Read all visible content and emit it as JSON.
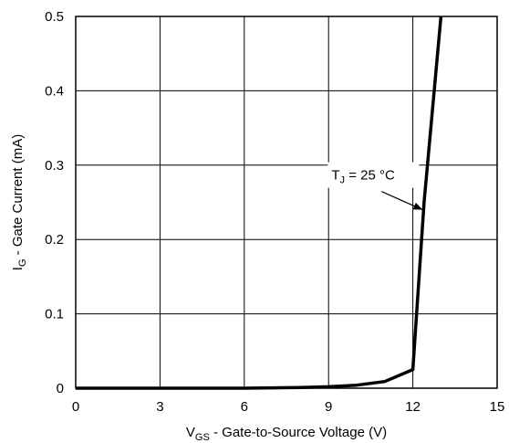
{
  "chart_data": {
    "type": "line",
    "title": "",
    "xlabel": {
      "main": "V",
      "sub": "GS",
      "rest": " - Gate-to-Source Voltage (V)"
    },
    "ylabel": {
      "main": "I",
      "sub": "G",
      "rest": " - Gate Current (mA)"
    },
    "xlim": [
      0,
      15
    ],
    "ylim": [
      0,
      0.5
    ],
    "xticks": [
      "0",
      "3",
      "6",
      "9",
      "12",
      "15"
    ],
    "yticks": [
      "0",
      "0.1",
      "0.2",
      "0.3",
      "0.4",
      "0.5"
    ],
    "grid": true,
    "series": [
      {
        "color": "#000000",
        "x": [
          0,
          3,
          6,
          8,
          9,
          10,
          11,
          12,
          12.4,
          13
        ],
        "y": [
          0,
          0,
          0,
          0.001,
          0.002,
          0.004,
          0.009,
          0.025,
          0.25,
          0.5
        ]
      }
    ],
    "annotation": {
      "main": "T",
      "sub": "J",
      "rest": " = 25 °C",
      "x": 12.35,
      "y": 0.24
    }
  }
}
